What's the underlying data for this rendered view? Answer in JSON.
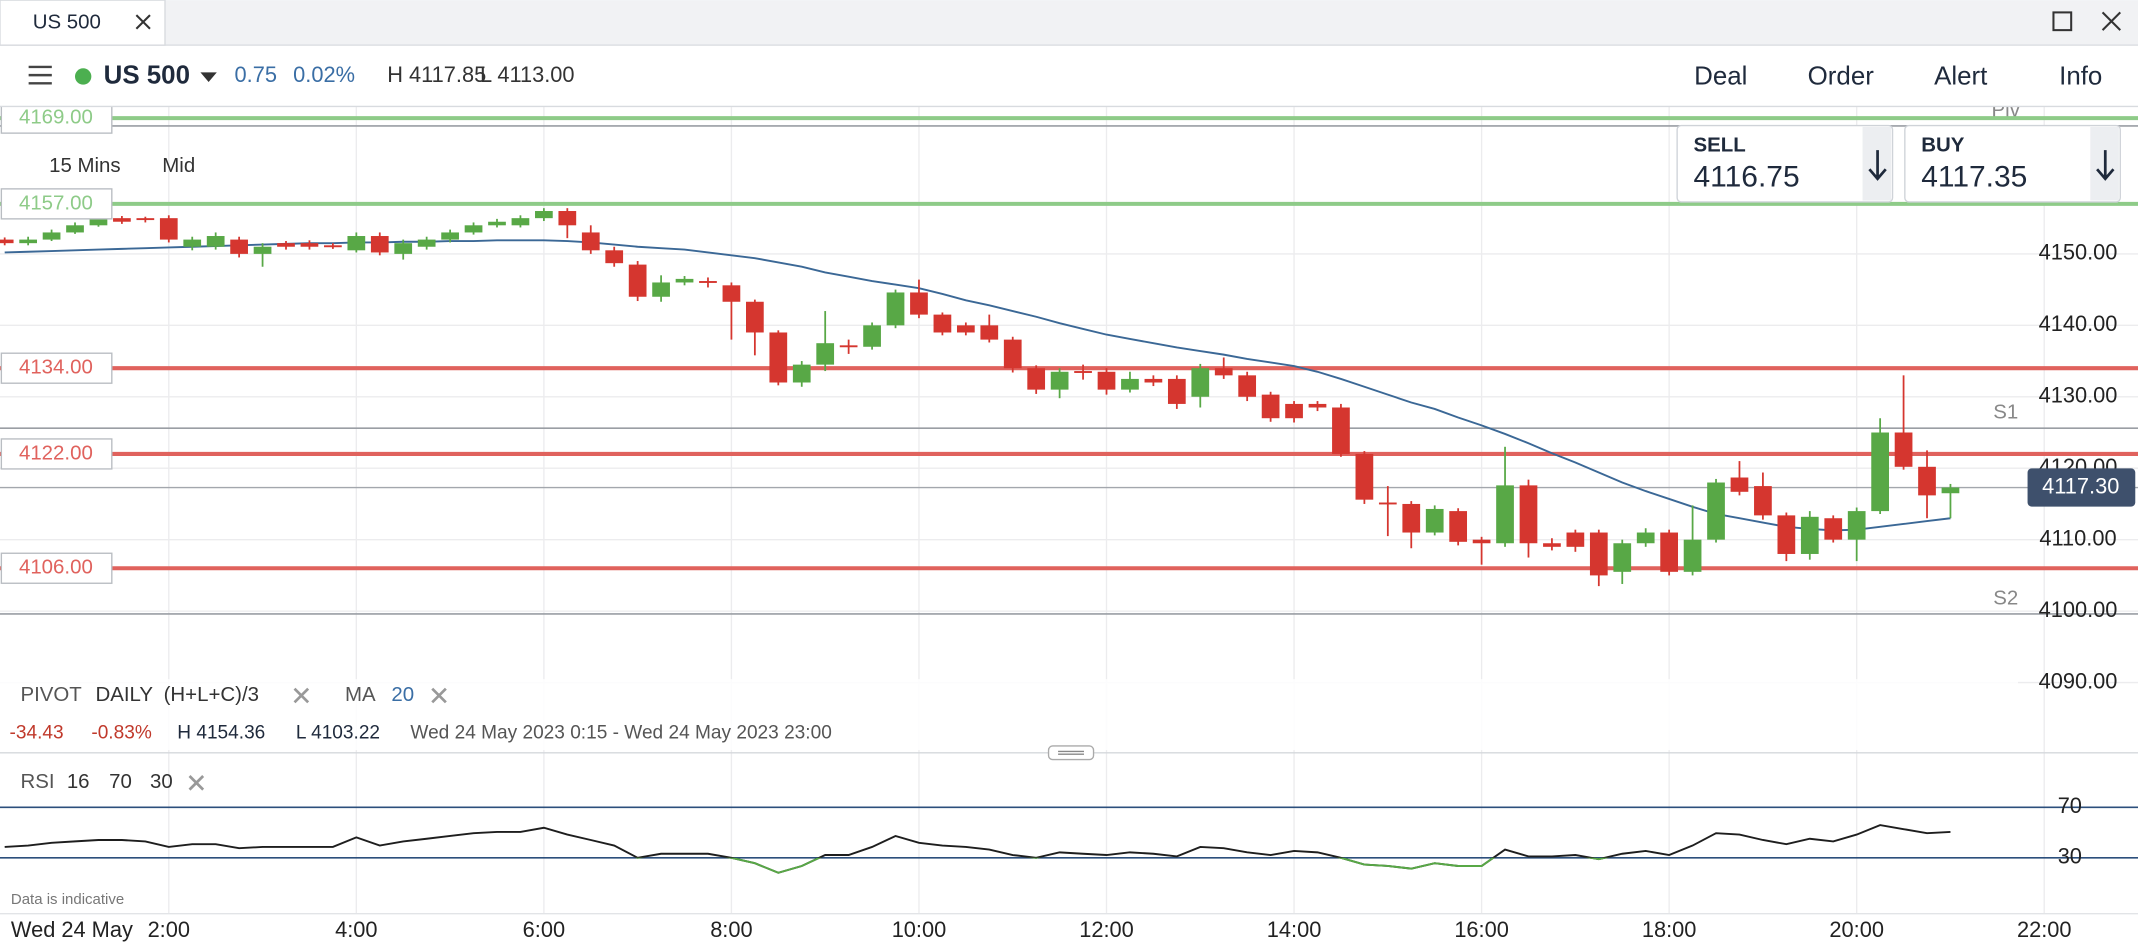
{
  "tab": {
    "title": "US 500"
  },
  "header": {
    "instrument": "US 500",
    "change": "0.75",
    "change_pct": "0.02%",
    "high": "H 4117.85",
    "low": "L 4113.00",
    "menu": [
      "Deal",
      "Order",
      "Alert",
      "Info"
    ]
  },
  "quote": {
    "sell_label": "SELL",
    "sell": "4116.75",
    "buy_label": "BUY",
    "buy": "4117.35"
  },
  "controls": {
    "interval": "15 Mins",
    "price_type": "Mid"
  },
  "indicators": {
    "pivot": "PIVOT",
    "pivot_period": "DAILY",
    "pivot_formula": "(H+L+C)/3"
  },
  "stats": {
    "change": "-34.43",
    "change_pct": "-0.83%",
    "high": "H 4154.36",
    "low": "L 4103.22",
    "range": "Wed 24 May 2023 0:15 - Wed 24 May 2023 23:00"
  },
  "rsi_legend": {
    "period": "16",
    "upper": "70",
    "lower": "30"
  },
  "footer": {
    "note": "Data is indicative",
    "date": "Wed 24 May"
  },
  "chart_data": [
    {
      "type": "candlestick",
      "up_color": "#58a846",
      "down_color": "#d5362f",
      "xlim": [
        0.2,
        23.0
      ],
      "xticks": [
        {
          "value": 2,
          "label": "2:00"
        },
        {
          "value": 4,
          "label": "4:00"
        },
        {
          "value": 6,
          "label": "6:00"
        },
        {
          "value": 8,
          "label": "8:00"
        },
        {
          "value": 10,
          "label": "10:00"
        },
        {
          "value": 12,
          "label": "12:00"
        },
        {
          "value": 14,
          "label": "14:00"
        },
        {
          "value": 16,
          "label": "16:00"
        },
        {
          "value": 18,
          "label": "18:00"
        },
        {
          "value": 20,
          "label": "20:00"
        },
        {
          "value": 22,
          "label": "22:00"
        }
      ],
      "ylim": [
        4090,
        4170
      ],
      "yticks": [
        {
          "value": 4090,
          "label": "4090.00"
        },
        {
          "value": 4100,
          "label": "4100.00"
        },
        {
          "value": 4110,
          "label": "4110.00"
        },
        {
          "value": 4120,
          "label": "4120.00"
        },
        {
          "value": 4130,
          "label": "4130.00"
        },
        {
          "value": 4140,
          "label": "4140.00"
        },
        {
          "value": 4150,
          "label": "4150.00"
        }
      ],
      "grid": true,
      "x": [
        0.25,
        0.5,
        0.75,
        1,
        1.25,
        1.5,
        1.75,
        2,
        2.25,
        2.5,
        2.75,
        3,
        3.25,
        3.5,
        3.75,
        4,
        4.25,
        4.5,
        4.75,
        5,
        5.25,
        5.5,
        5.75,
        6,
        6.25,
        6.5,
        6.75,
        7,
        7.25,
        7.5,
        7.75,
        8,
        8.25,
        8.5,
        8.75,
        9,
        9.25,
        9.5,
        9.75,
        10,
        10.25,
        10.5,
        10.75,
        11,
        11.25,
        11.5,
        11.75,
        12,
        12.25,
        12.5,
        12.75,
        13,
        13.25,
        13.5,
        13.75,
        14,
        14.25,
        14.5,
        14.75,
        15,
        15.25,
        15.5,
        15.75,
        16,
        16.25,
        16.5,
        16.75,
        17,
        17.25,
        17.5,
        17.75,
        18,
        18.25,
        18.5,
        18.75,
        19,
        19.25,
        19.5,
        19.75,
        20,
        20.25,
        20.5,
        20.75,
        21
      ],
      "open": [
        4152,
        4151.5,
        4152,
        4153,
        4154,
        4155,
        4155,
        4155,
        4151,
        4151,
        4152,
        4150,
        4151.5,
        4151.5,
        4151.2,
        4150.5,
        4152.5,
        4150,
        4151,
        4152,
        4153,
        4154,
        4154,
        4155,
        4156,
        4153,
        4150.5,
        4148.5,
        4144,
        4146,
        4146.2,
        4145.6,
        4143.3,
        4139,
        4132,
        4134.5,
        4137.2,
        4137,
        4140,
        4144.6,
        4141.5,
        4140,
        4140,
        4138,
        4134,
        4131,
        4133.6,
        4133.5,
        4131,
        4132.5,
        4132.5,
        4130,
        4134,
        4133,
        4130.3,
        4129,
        4129,
        4128.5,
        4122,
        4115.2,
        4115,
        4111,
        4114,
        4110,
        4109.5,
        4117.6,
        4109.5,
        4111,
        4111,
        4105.5,
        4109.5,
        4111,
        4105.5,
        4110,
        4118.7,
        4117.5,
        4113.4,
        4108,
        4113,
        4110,
        4114,
        4125,
        4120.2,
        4116.5
      ],
      "high": [
        4152.3,
        4152.4,
        4153.4,
        4154.4,
        4157,
        4155.3,
        4155.2,
        4155.4,
        4152.4,
        4153,
        4152.4,
        4151.5,
        4151.8,
        4151.9,
        4151.5,
        4153,
        4153,
        4152,
        4152.4,
        4153.4,
        4154.4,
        4154.9,
        4155.4,
        4156.4,
        4156.4,
        4154,
        4151,
        4149,
        4147,
        4146.9,
        4146.7,
        4146,
        4143.6,
        4139.3,
        4135,
        4142,
        4138,
        4140.4,
        4145,
        4146.4,
        4141.8,
        4140.4,
        4141.5,
        4138.4,
        4134.4,
        4134,
        4134.5,
        4134,
        4133.5,
        4133,
        4133,
        4134.6,
        4135.5,
        4133.5,
        4130.7,
        4129.4,
        4129.4,
        4129,
        4122.4,
        4117.5,
        4115.4,
        4114.8,
        4114.4,
        4110.4,
        4123,
        4118.4,
        4110.2,
        4111.4,
        4111.4,
        4110,
        4111.6,
        4111.4,
        4114.8,
        4118.5,
        4121,
        4119.4,
        4113.8,
        4114,
        4113.4,
        4114.5,
        4127,
        4133,
        4122.5,
        4117.8
      ],
      "low": [
        4151.2,
        4151.2,
        4151.8,
        4152.8,
        4153.8,
        4154.2,
        4154.4,
        4151.6,
        4150.5,
        4150.6,
        4149.5,
        4148.2,
        4150.6,
        4150.6,
        4150.7,
        4150.2,
        4149.8,
        4149.2,
        4150.6,
        4151.6,
        4152.7,
        4153.7,
        4153.7,
        4154.6,
        4152.2,
        4150,
        4148.2,
        4143.4,
        4143.3,
        4145.6,
        4145.3,
        4138,
        4135.8,
        4131.6,
        4131.4,
        4133.6,
        4136,
        4136.6,
        4139.6,
        4141,
        4138.6,
        4138.6,
        4137.6,
        4133.4,
        4130.4,
        4129.8,
        4132.4,
        4130.3,
        4130.6,
        4131.5,
        4128.3,
        4128.5,
        4132.5,
        4129.4,
        4126.5,
        4126.4,
        4128,
        4121.6,
        4115,
        4110.5,
        4108.8,
        4110.6,
        4109.2,
        4106.5,
        4109,
        4107.5,
        4108.5,
        4108.3,
        4103.5,
        4103.8,
        4109,
        4105,
        4105,
        4109.6,
        4116.2,
        4112.8,
        4107,
        4107.2,
        4109.6,
        4107,
        4113.6,
        4119.8,
        4113,
        4113
      ],
      "close": [
        4151.5,
        4152,
        4153,
        4154,
        4155,
        4154.5,
        4154.8,
        4152,
        4152,
        4152.5,
        4150,
        4151,
        4151,
        4151,
        4151,
        4152.5,
        4150.2,
        4151.5,
        4152,
        4153,
        4154,
        4154.5,
        4155,
        4156,
        4154,
        4150.5,
        4148.7,
        4144,
        4146,
        4146.5,
        4146,
        4143.3,
        4139,
        4132,
        4134.5,
        4137.5,
        4137,
        4140,
        4144.6,
        4141.5,
        4139,
        4139,
        4138,
        4134,
        4131,
        4133.5,
        4133.4,
        4131,
        4132.5,
        4132,
        4129,
        4134,
        4133,
        4130,
        4127,
        4127,
        4128.5,
        4122,
        4115.6,
        4115,
        4111,
        4114.3,
        4109.7,
        4109.5,
        4117.6,
        4109.5,
        4109,
        4109,
        4105,
        4109.5,
        4111,
        4105.5,
        4110,
        4118,
        4116.7,
        4113.4,
        4108,
        4113.2,
        4110,
        4114,
        4125,
        4120.2,
        4116.2,
        4117.3
      ],
      "ma": {
        "name": "MA",
        "period": 20,
        "color": "#3b6896",
        "values": [
          4150.2,
          4150.3,
          4150.4,
          4150.5,
          4150.6,
          4150.7,
          4150.8,
          4150.9,
          4151.0,
          4151.1,
          4151.2,
          4151.3,
          4151.4,
          4151.5,
          4151.5,
          4151.6,
          4151.6,
          4151.7,
          4151.7,
          4151.8,
          4151.8,
          4151.9,
          4151.9,
          4151.9,
          4151.8,
          4151.6,
          4151.3,
          4151.0,
          4150.8,
          4150.6,
          4150.2,
          4149.8,
          4149.4,
          4148.8,
          4148.2,
          4147.4,
          4146.8,
          4146.2,
          4145.7,
          4145.2,
          4144.4,
          4143.5,
          4142.8,
          4142.0,
          4141.2,
          4140.3,
          4139.5,
          4138.7,
          4138.1,
          4137.5,
          4136.9,
          4136.4,
          4135.9,
          4135.3,
          4134.8,
          4134.3,
          4133.5,
          4132.5,
          4131.4,
          4130.3,
          4129.2,
          4128.3,
          4127.1,
          4126.0,
          4124.8,
          4123.5,
          4122.1,
          4120.8,
          4119.4,
          4118.0,
          4116.8,
          4115.7,
          4114.6,
          4113.6,
          4113.0,
          4112.4,
          4111.8,
          4111.5,
          4111.3,
          4111.4,
          4111.8,
          4112.2,
          4112.6,
          4113.0
        ]
      },
      "levels": [
        {
          "value": 4169,
          "label": "4169.00",
          "color": "#8ecb88"
        },
        {
          "value": 4157,
          "label": "4157.00",
          "color": "#8ecb88"
        },
        {
          "value": 4134,
          "label": "4134.00",
          "color": "#e0625d"
        },
        {
          "value": 4122,
          "label": "4122.00",
          "color": "#e0625d"
        },
        {
          "value": 4106,
          "label": "4106.00",
          "color": "#e0625d"
        }
      ],
      "pivots": [
        {
          "name": "Piv",
          "value": 4167.9
        },
        {
          "name": "S1",
          "value": 4125.6
        },
        {
          "name": "S2",
          "value": 4099.6
        }
      ],
      "last": {
        "value": 4117.3,
        "label": "4117.30"
      }
    },
    {
      "type": "line",
      "xlim": [
        0.2,
        23.0
      ],
      "ylim": [
        0,
        100
      ],
      "yticks": [
        30,
        70
      ],
      "below_color": "#58a846",
      "x": [
        0.25,
        0.5,
        0.75,
        1,
        1.25,
        1.5,
        1.75,
        2,
        2.25,
        2.5,
        2.75,
        3,
        3.25,
        3.5,
        3.75,
        4,
        4.25,
        4.5,
        4.75,
        5,
        5.25,
        5.5,
        5.75,
        6,
        6.25,
        6.5,
        6.75,
        7,
        7.25,
        7.5,
        7.75,
        8,
        8.25,
        8.5,
        8.75,
        9,
        9.25,
        9.5,
        9.75,
        10,
        10.25,
        10.5,
        10.75,
        11,
        11.25,
        11.5,
        11.75,
        12,
        12.25,
        12.5,
        12.75,
        13,
        13.25,
        13.5,
        13.75,
        14,
        14.25,
        14.5,
        14.75,
        15,
        15.25,
        15.5,
        15.75,
        16,
        16.25,
        16.5,
        16.75,
        17,
        17.25,
        17.5,
        17.75,
        18,
        18.25,
        18.5,
        18.75,
        19,
        19.25,
        19.5,
        19.75,
        20,
        20.25,
        20.5,
        20.75,
        21
      ],
      "series": [
        {
          "name": "RSI",
          "color": "#1e1e1e",
          "values": [
            38.6,
            39.7,
            41.9,
            43.0,
            44.1,
            44.1,
            43.0,
            38.6,
            40.8,
            40.8,
            37.6,
            38.6,
            38.6,
            38.6,
            38.6,
            46.2,
            39.7,
            43.0,
            45.1,
            47.3,
            49.5,
            50.5,
            50.5,
            53.8,
            48.4,
            44.1,
            39.7,
            30.0,
            33.2,
            33.2,
            33.2,
            30.0,
            25.7,
            18.1,
            23.5,
            32.2,
            32.2,
            38.6,
            47.3,
            41.9,
            39.7,
            38.6,
            36.5,
            32.2,
            30.0,
            34.3,
            33.2,
            32.2,
            34.3,
            33.2,
            31.1,
            38.6,
            37.6,
            34.3,
            32.2,
            35.4,
            34.3,
            30.0,
            24.6,
            23.5,
            21.4,
            25.7,
            23.5,
            23.5,
            36.5,
            31.1,
            31.1,
            32.2,
            28.9,
            33.2,
            35.4,
            32.2,
            39.7,
            49.5,
            48.4,
            44.1,
            40.8,
            45.1,
            43.0,
            48.4,
            55.9,
            52.7,
            49.5,
            50.5
          ]
        }
      ]
    }
  ]
}
